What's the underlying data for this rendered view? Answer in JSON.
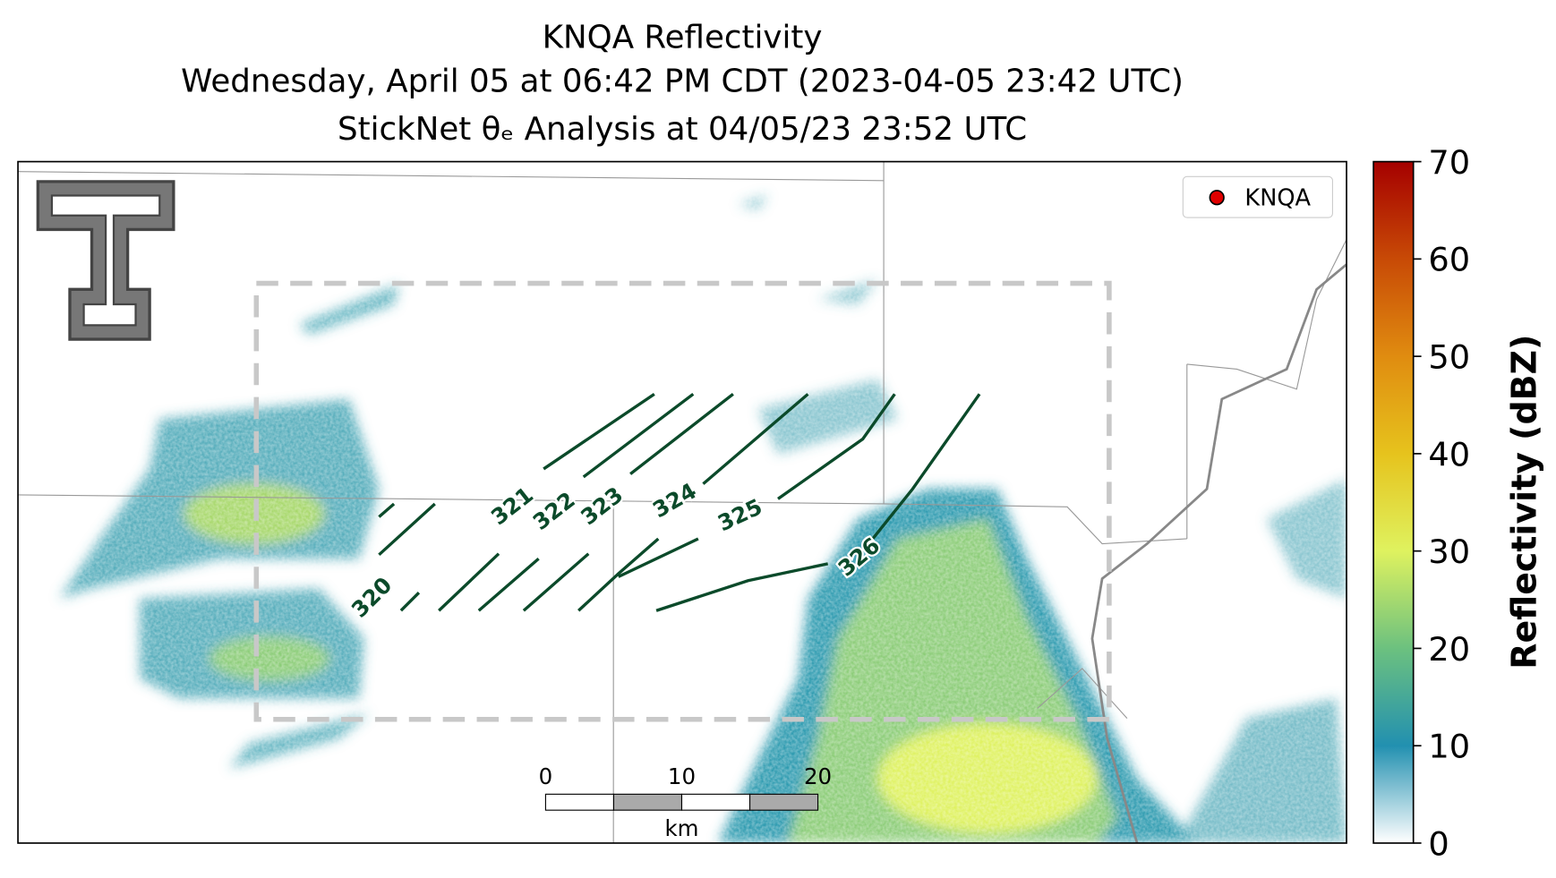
{
  "title_lines": [
    "KNQA Reflectivity",
    "Wednesday, April 05 at 06:42 PM CDT (2023-04-05 23:42 UTC)",
    "StickNet θₑ Analysis at 04/05/23 23:52 UTC"
  ],
  "legend": {
    "label": "KNQA",
    "color": "#e00000"
  },
  "contours": [
    320,
    321,
    322,
    323,
    324,
    325,
    326
  ],
  "contour_color": "#0b4a2a",
  "scalebar": {
    "ticks": [
      0,
      10,
      20
    ],
    "unit": "km"
  },
  "colorbar": {
    "label": "Reflectivity (dBZ)",
    "lim": [
      0,
      70
    ],
    "ticks": [
      0,
      10,
      20,
      30,
      40,
      50,
      60,
      70
    ],
    "colors": [
      "#ffffff",
      "#2290b0",
      "#6cc17f",
      "#dff25f",
      "#e6c31d",
      "#e08c10",
      "#c84a06",
      "#a50000"
    ]
  }
}
